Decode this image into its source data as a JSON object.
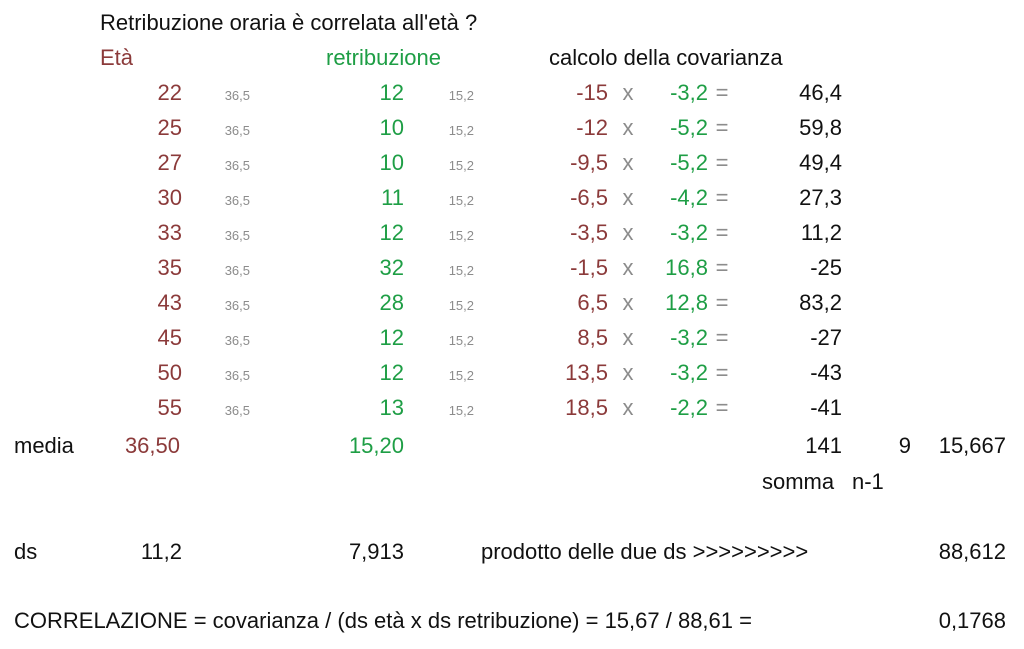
{
  "title": "Retribuzione oraria è correlata all'età ?",
  "headers": {
    "eta": "Età",
    "retribuzione": "retribuzione",
    "covarianza": "calcolo della covarianza"
  },
  "rows": [
    {
      "eta": "22",
      "eta_mean": "36,5",
      "retr": "12",
      "retr_mean": "15,2",
      "dev_eta": "-15",
      "x": "x",
      "dev_retr": "-3,2",
      "eq": "=",
      "prod": "46,4"
    },
    {
      "eta": "25",
      "eta_mean": "36,5",
      "retr": "10",
      "retr_mean": "15,2",
      "dev_eta": "-12",
      "x": "x",
      "dev_retr": "-5,2",
      "eq": "=",
      "prod": "59,8"
    },
    {
      "eta": "27",
      "eta_mean": "36,5",
      "retr": "10",
      "retr_mean": "15,2",
      "dev_eta": "-9,5",
      "x": "x",
      "dev_retr": "-5,2",
      "eq": "=",
      "prod": "49,4"
    },
    {
      "eta": "30",
      "eta_mean": "36,5",
      "retr": "11",
      "retr_mean": "15,2",
      "dev_eta": "-6,5",
      "x": "x",
      "dev_retr": "-4,2",
      "eq": "=",
      "prod": "27,3"
    },
    {
      "eta": "33",
      "eta_mean": "36,5",
      "retr": "12",
      "retr_mean": "15,2",
      "dev_eta": "-3,5",
      "x": "x",
      "dev_retr": "-3,2",
      "eq": "=",
      "prod": "11,2"
    },
    {
      "eta": "35",
      "eta_mean": "36,5",
      "retr": "32",
      "retr_mean": "15,2",
      "dev_eta": "-1,5",
      "x": "x",
      "dev_retr": "16,8",
      "eq": "=",
      "prod": "-25"
    },
    {
      "eta": "43",
      "eta_mean": "36,5",
      "retr": "28",
      "retr_mean": "15,2",
      "dev_eta": "6,5",
      "x": "x",
      "dev_retr": "12,8",
      "eq": "=",
      "prod": "83,2"
    },
    {
      "eta": "45",
      "eta_mean": "36,5",
      "retr": "12",
      "retr_mean": "15,2",
      "dev_eta": "8,5",
      "x": "x",
      "dev_retr": "-3,2",
      "eq": "=",
      "prod": "-27"
    },
    {
      "eta": "50",
      "eta_mean": "36,5",
      "retr": "12",
      "retr_mean": "15,2",
      "dev_eta": "13,5",
      "x": "x",
      "dev_retr": "-3,2",
      "eq": "=",
      "prod": "-43"
    },
    {
      "eta": "55",
      "eta_mean": "36,5",
      "retr": "13",
      "retr_mean": "15,2",
      "dev_eta": "18,5",
      "x": "x",
      "dev_retr": "-2,2",
      "eq": "=",
      "prod": "-41"
    }
  ],
  "media": {
    "label": "media",
    "eta": "36,50",
    "retr": "15,20",
    "somma": "141",
    "n1": "9",
    "cov": "15,667"
  },
  "somma_label": "somma",
  "n1_label": "n-1",
  "ds": {
    "label": "ds",
    "eta": "11,2",
    "retr": "7,913",
    "prodotto_label": "prodotto delle due ds >>>>>>>>>",
    "prodotto": "88,612"
  },
  "correlazione": {
    "formula": "CORRELAZIONE = covarianza / (ds età x ds retribuzione) = 15,67 / 88,61 =",
    "value": "0,1768"
  }
}
